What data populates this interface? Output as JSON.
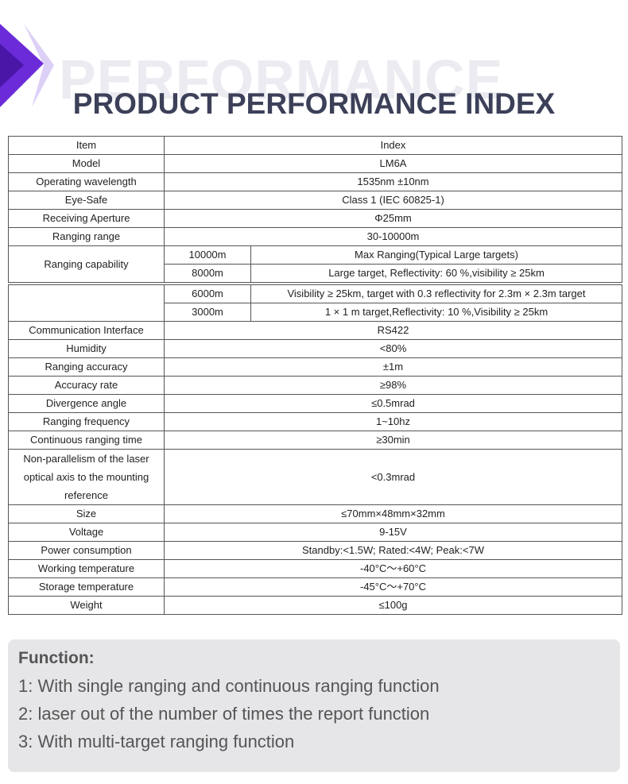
{
  "header": {
    "watermark": "PERFORMANCE",
    "title": "PRODUCT PERFORMANCE INDEX"
  },
  "table": {
    "header": [
      "Item",
      "Index"
    ],
    "rows": [
      {
        "label": "Model",
        "value": "LM6A"
      },
      {
        "label": "Operating wavelength",
        "value": "1535nm ±10nm"
      },
      {
        "label": "Eye-Safe",
        "value": "Class 1 (IEC 60825-1)"
      },
      {
        "label": "Receiving Aperture",
        "value": "Φ25mm"
      },
      {
        "label": "Ranging range",
        "value": "30-10000m"
      },
      {
        "label": "Ranging capability",
        "sub": [
          [
            "10000m",
            "Max Ranging(Typical Large targets)"
          ],
          [
            "8000m",
            "Large target, Reflectivity: 60 %,visibility ≥ 25km"
          ]
        ]
      }
    ]
  },
  "table2": {
    "rows": [
      {
        "sub": [
          [
            "6000m",
            "Visibility ≥ 25km, target with 0.3 reflectivity for 2.3m × 2.3m target"
          ],
          [
            "3000m",
            "1 × 1 m target,Reflectivity: 10 %,Visibility ≥ 25km"
          ]
        ]
      },
      {
        "label": "Communication Interface",
        "value": "RS422"
      },
      {
        "label": "Humidity",
        "value": "<80%"
      },
      {
        "label": "Ranging accuracy",
        "value": "±1m"
      },
      {
        "label": "Accuracy rate",
        "value": "≥98%"
      },
      {
        "label": "Divergence angle",
        "value": "≤0.5mrad"
      },
      {
        "label": "Ranging frequency",
        "value": "1~10hz"
      },
      {
        "label": "Continuous ranging time",
        "value": "≥30min"
      },
      {
        "label": "Non-parallelism of the laser optical axis to the mounting reference",
        "value": "<0.3mrad"
      },
      {
        "label": "Size",
        "value": "≤70mm×48mm×32mm"
      },
      {
        "label": "Voltage",
        "value": "9-15V"
      },
      {
        "label": "Power consumption",
        "value": "Standby:<1.5W; Rated:<4W; Peak:<7W"
      },
      {
        "label": "Working temperature",
        "value": "-40°C～+60°C"
      },
      {
        "label": "Storage temperature",
        "value": "-45°C～+70°C"
      },
      {
        "label": "Weight",
        "value": "≤100g"
      }
    ]
  },
  "function": {
    "title": "Function:",
    "items": [
      "1: With single ranging and continuous ranging function",
      "2: laser out of the number of times the report function",
      "3: With multi-target ranging function"
    ]
  }
}
